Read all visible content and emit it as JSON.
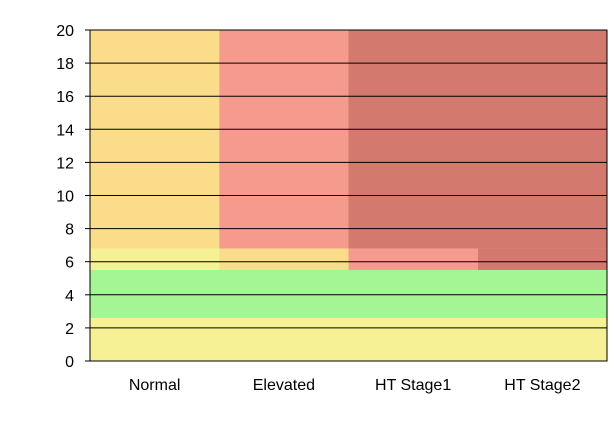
{
  "chart_data": {
    "type": "heatmap",
    "title": "",
    "xlabel": "",
    "ylabel": "",
    "categories": [
      "Normal",
      "Elevated",
      "HT Stage1",
      "HT Stage2"
    ],
    "ylim": [
      0,
      20
    ],
    "y_ticks": [
      0,
      2,
      4,
      6,
      8,
      10,
      12,
      14,
      16,
      18,
      20
    ],
    "grid": "horizontal",
    "legend": "none",
    "regions": [
      {
        "x_from": 0,
        "x_to": 4,
        "y_from": 0,
        "y_to": 2.6,
        "color": "#f7f196"
      },
      {
        "x_from": 0,
        "x_to": 4,
        "y_from": 2.6,
        "y_to": 5.5,
        "color": "#a4f593"
      },
      {
        "x_from": 0,
        "x_to": 1,
        "y_from": 5.5,
        "y_to": 6.8,
        "color": "#f7f196"
      },
      {
        "x_from": 1,
        "x_to": 2,
        "y_from": 5.5,
        "y_to": 6.8,
        "color": "#fadc8a"
      },
      {
        "x_from": 2,
        "x_to": 3,
        "y_from": 5.5,
        "y_to": 6.8,
        "color": "#f59a8c"
      },
      {
        "x_from": 3,
        "x_to": 4,
        "y_from": 5.5,
        "y_to": 6.8,
        "color": "#d4796e"
      },
      {
        "x_from": 0,
        "x_to": 1,
        "y_from": 6.8,
        "y_to": 20,
        "color": "#fadc8a"
      },
      {
        "x_from": 1,
        "x_to": 2,
        "y_from": 6.8,
        "y_to": 20,
        "color": "#f59a8c"
      },
      {
        "x_from": 2,
        "x_to": 4,
        "y_from": 6.8,
        "y_to": 20,
        "color": "#d4796e"
      }
    ]
  }
}
